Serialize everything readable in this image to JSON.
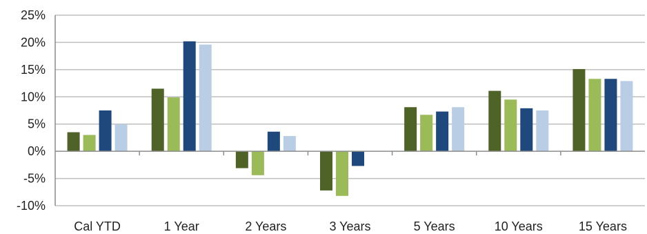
{
  "chart_data": {
    "type": "bar",
    "title": "",
    "xlabel": "",
    "ylabel": "",
    "categories": [
      "Cal YTD",
      "1 Year",
      "2 Years",
      "3 Years",
      "5 Years",
      "10 Years",
      "15 Years"
    ],
    "series": [
      {
        "color": "#4f6228",
        "values": [
          3.5,
          11.5,
          -3.1,
          -7.2,
          8.1,
          11.1,
          15.1
        ]
      },
      {
        "color": "#9bbb59",
        "values": [
          3.0,
          9.9,
          -4.4,
          -8.2,
          6.7,
          9.5,
          13.3
        ]
      },
      {
        "color": "#1f497d",
        "values": [
          7.5,
          20.2,
          3.6,
          -2.7,
          7.3,
          7.9,
          13.3
        ]
      },
      {
        "color": "#b9cde5",
        "values": [
          5.0,
          19.6,
          2.8,
          0.0,
          8.1,
          7.5,
          12.9
        ]
      }
    ],
    "ylim": [
      -10,
      25
    ],
    "y_ticks": [
      25,
      20,
      15,
      10,
      5,
      0,
      -5,
      -10
    ],
    "y_tick_labels": [
      "25%",
      "20%",
      "15%",
      "10%",
      "5%",
      "0%",
      "-5%",
      "-10%"
    ],
    "grid": true,
    "legend": "none"
  }
}
